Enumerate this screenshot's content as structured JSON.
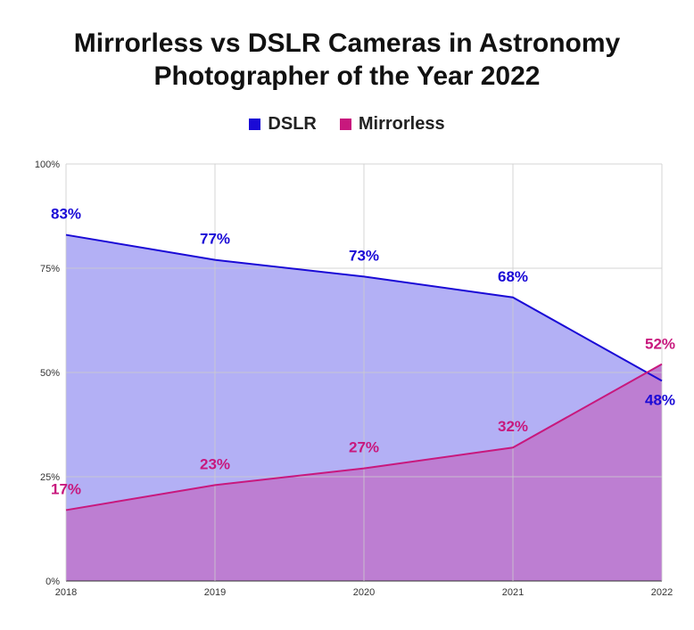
{
  "chart_data": {
    "type": "area",
    "title_lines": [
      "Mirrorless vs DSLR Cameras in Astronomy",
      "Photographer of the Year 2022"
    ],
    "categories": [
      "2018",
      "2019",
      "2020",
      "2021",
      "2022"
    ],
    "series": [
      {
        "name": "DSLR",
        "values": [
          83,
          77,
          73,
          68,
          48
        ],
        "labels": [
          "83%",
          "77%",
          "73%",
          "68%",
          "48%"
        ],
        "line_color": "#1a0ad6",
        "fill_color": "#b3b0f5"
      },
      {
        "name": "Mirrorless",
        "values": [
          17,
          23,
          27,
          32,
          52
        ],
        "labels": [
          "17%",
          "23%",
          "27%",
          "32%",
          "52%"
        ],
        "line_color": "#c8187d",
        "fill_color": "#bd7ed2"
      }
    ],
    "y_ticks": [
      0,
      25,
      50,
      75,
      100
    ],
    "y_tick_labels": [
      "0%",
      "25%",
      "50%",
      "75%",
      "100%"
    ],
    "ylim": [
      0,
      100
    ],
    "grid": true,
    "legend_position": "top"
  }
}
